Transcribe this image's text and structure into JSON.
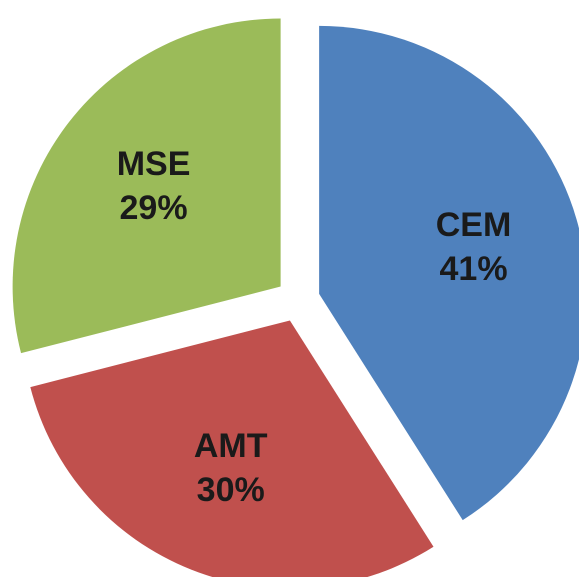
{
  "chart_data": {
    "type": "pie",
    "categories": [
      "CEM",
      "AMT",
      "MSE"
    ],
    "values": [
      41,
      30,
      29
    ],
    "value_labels": [
      "41%",
      "30%",
      "29%"
    ],
    "colors": [
      "#4f81bd",
      "#c0504d",
      "#9bbb59"
    ]
  }
}
